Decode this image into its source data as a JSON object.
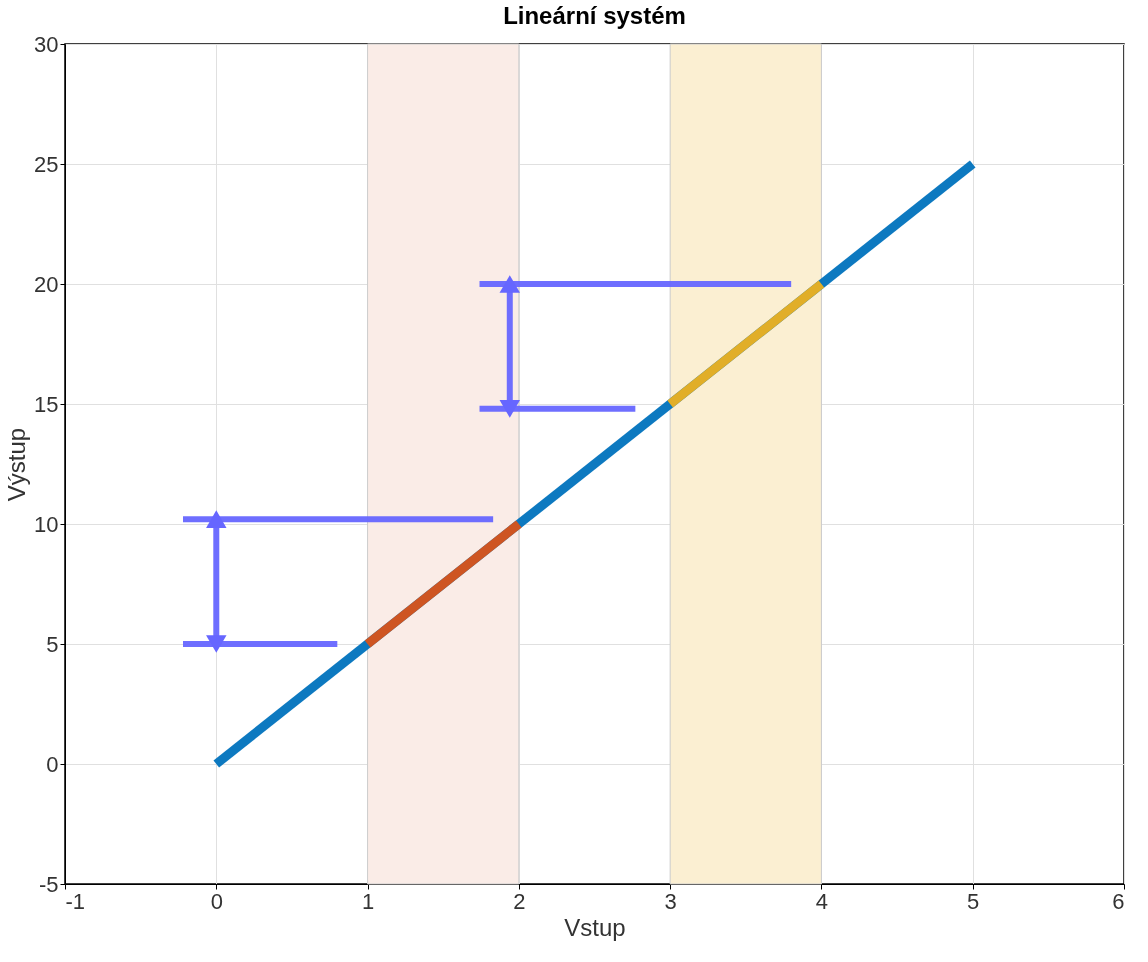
{
  "chart_data": {
    "type": "line",
    "title": "Lineární systém",
    "xlabel": "Vstup",
    "ylabel": "Výstup",
    "xlim": [
      -1,
      6
    ],
    "ylim": [
      -5,
      30
    ],
    "xticks": [
      -1,
      0,
      1,
      2,
      3,
      4,
      5,
      6
    ],
    "yticks": [
      -5,
      0,
      5,
      10,
      15,
      20,
      25,
      30
    ],
    "grid": true,
    "bands": [
      {
        "axis": "x",
        "from": 1,
        "to": 2,
        "color": "#faece7"
      },
      {
        "axis": "x",
        "from": 3,
        "to": 4,
        "color": "#fbefd2"
      }
    ],
    "series": [
      {
        "color": "#0072bd",
        "x": [
          0,
          5
        ],
        "values": [
          0,
          25
        ]
      },
      {
        "color": "#d95319",
        "x": [
          1,
          2
        ],
        "values": [
          5,
          10
        ]
      },
      {
        "color": "#edb120",
        "x": [
          3,
          4
        ],
        "values": [
          15,
          20
        ]
      },
      {
        "color": "#6666ff",
        "x": [
          -0.22,
          0.8
        ],
        "values": [
          5,
          5
        ]
      },
      {
        "color": "#6666ff",
        "x": [
          -0.22,
          1.83
        ],
        "values": [
          10.2,
          10.2
        ]
      },
      {
        "color": "#6666ff",
        "x": [
          1.74,
          2.77
        ],
        "values": [
          14.8,
          14.8
        ]
      },
      {
        "color": "#6666ff",
        "x": [
          1.74,
          3.8
        ],
        "values": [
          20,
          20
        ]
      },
      {
        "color": "#6666ff",
        "x": [
          0,
          0
        ],
        "values": [
          5,
          10.2
        ],
        "marker": "triangle"
      },
      {
        "color": "#6666ff",
        "x": [
          1.94,
          1.94
        ],
        "values": [
          14.8,
          20
        ],
        "marker": "triangle"
      }
    ]
  }
}
